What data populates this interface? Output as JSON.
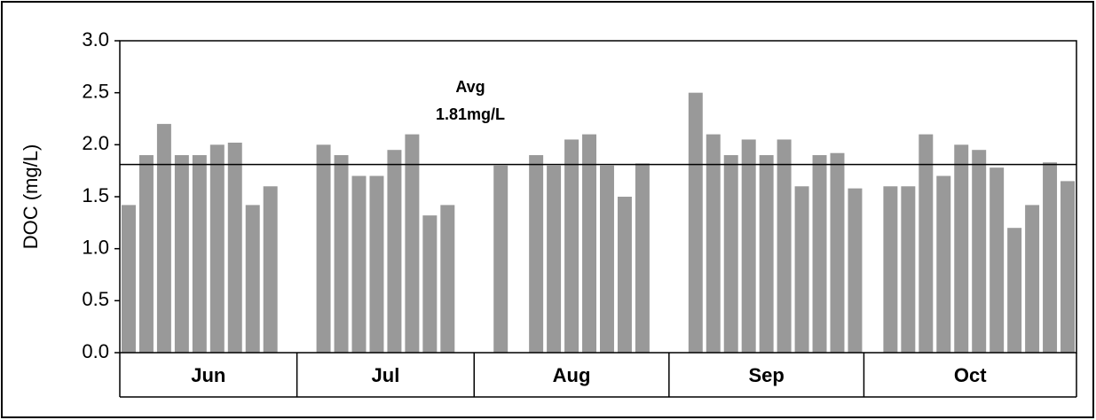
{
  "chart_data": {
    "type": "bar",
    "y_label": "DOC (mg/L)",
    "categories": [
      null,
      null,
      null,
      null,
      null,
      null,
      null,
      null,
      null,
      null,
      null,
      null,
      null,
      null,
      null,
      null,
      null,
      null,
      null,
      null,
      null,
      null,
      null,
      null,
      null,
      null,
      null,
      null,
      null,
      null,
      null,
      null,
      null,
      null,
      null,
      null,
      null,
      null,
      null,
      null,
      null,
      null,
      null,
      null,
      null,
      null,
      null,
      null,
      null,
      null,
      null,
      null,
      null,
      null
    ],
    "values": [
      1.42,
      1.9,
      2.2,
      1.9,
      1.9,
      2.0,
      2.02,
      1.42,
      1.6,
      null,
      null,
      2.0,
      1.9,
      1.7,
      1.7,
      1.95,
      2.1,
      1.32,
      1.42,
      null,
      null,
      1.8,
      null,
      1.9,
      1.8,
      2.05,
      2.1,
      1.8,
      1.5,
      1.82,
      null,
      null,
      2.5,
      2.1,
      1.9,
      2.05,
      1.9,
      2.05,
      1.6,
      1.9,
      1.92,
      1.58,
      null,
      1.6,
      1.6,
      2.1,
      1.7,
      2.0,
      1.95,
      1.78,
      1.2,
      1.42,
      1.83,
      1.65
    ],
    "color": "#999999",
    "groups": [
      {
        "label": "Jun",
        "size": 10
      },
      {
        "label": "Jul",
        "size": 10
      },
      {
        "label": "Aug",
        "size": 11
      },
      {
        "label": "Sep",
        "size": 11
      },
      {
        "label": "Oct",
        "size": 12
      }
    ],
    "reference_line": {
      "value": 1.81,
      "label": [
        "Avg",
        "1.81mg/L"
      ]
    },
    "ylim": [
      0,
      3
    ],
    "yticks": [
      {
        "value": 0,
        "label": "0.0"
      },
      0.5,
      {
        "value": 1,
        "label": "1.0"
      },
      1.5,
      {
        "value": 2,
        "label": "2.0"
      },
      2.5,
      {
        "value": 3,
        "label": "3.0"
      }
    ]
  }
}
